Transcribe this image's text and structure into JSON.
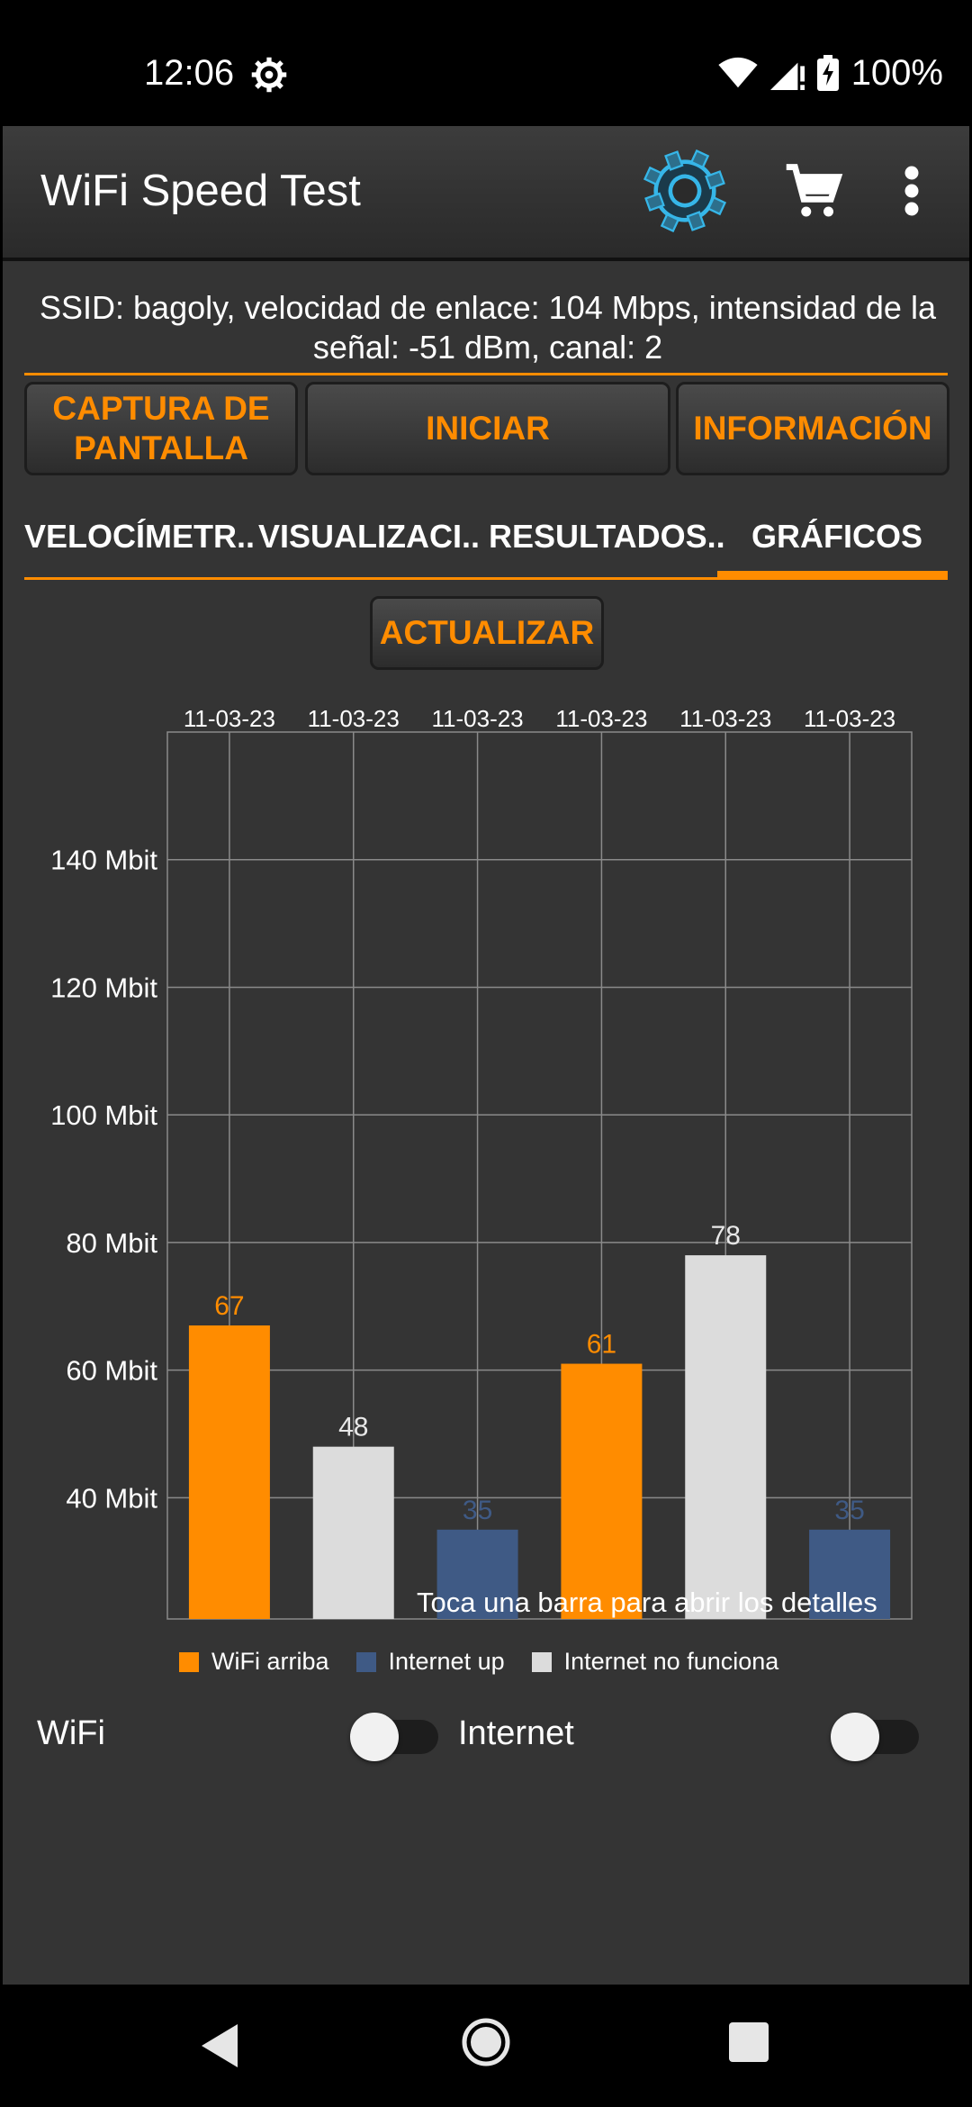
{
  "status_bar": {
    "time": "12:06",
    "battery": "100%"
  },
  "app_bar": {
    "title": "WiFi Speed Test"
  },
  "connection_info": "SSID: bagoly, velocidad de enlace: 104 Mbps, intensidad de la señal: -51 dBm, canal: 2",
  "buttons": {
    "screenshot": "CAPTURA DE PANTALLA",
    "start": "INICIAR",
    "info": "INFORMACIÓN",
    "refresh": "ACTUALIZAR"
  },
  "tabs": [
    {
      "label": "VELOCÍMETR.."
    },
    {
      "label": "VISUALIZACI.."
    },
    {
      "label": "RESULTADOS.."
    },
    {
      "label": "GRÁFICOS",
      "selected": true
    }
  ],
  "chart_data": {
    "type": "bar",
    "categories": [
      "11-03-23",
      "11-03-23",
      "11-03-23",
      "11-03-23",
      "11-03-23",
      "11-03-23"
    ],
    "values": [
      67,
      48,
      35,
      61,
      78,
      35
    ],
    "bar_series": [
      "WiFi arriba",
      "Internet no funciona",
      "Internet up",
      "WiFi arriba",
      "Internet no funciona",
      "Internet up"
    ],
    "y_ticks": [
      "40 Mbit",
      "60 Mbit",
      "80 Mbit",
      "100 Mbit",
      "120 Mbit",
      "140 Mbit"
    ],
    "y_tick_values": [
      40,
      60,
      80,
      100,
      120,
      140
    ],
    "ylim": [
      21,
      160
    ],
    "grid": true,
    "legend_position": "bottom",
    "series": [
      {
        "name": "WiFi arriba",
        "color": "#ff8c00"
      },
      {
        "name": "Internet up",
        "color": "#3f5a85"
      },
      {
        "name": "Internet no funciona",
        "color": "#dcdcdc"
      }
    ]
  },
  "chart_hint": "Toca una barra para abrir los detalles",
  "toggles": {
    "wifi_label": "WiFi",
    "wifi_on": false,
    "internet_label": "Internet",
    "internet_on": false
  },
  "icons": {
    "status_gear": "gear-icon",
    "wifi": "wifi-icon",
    "signal": "signal-icon",
    "battery": "battery-charging-icon",
    "app_settings": "settings-gear-icon",
    "cart": "cart-icon",
    "menu": "more-vert-icon"
  }
}
